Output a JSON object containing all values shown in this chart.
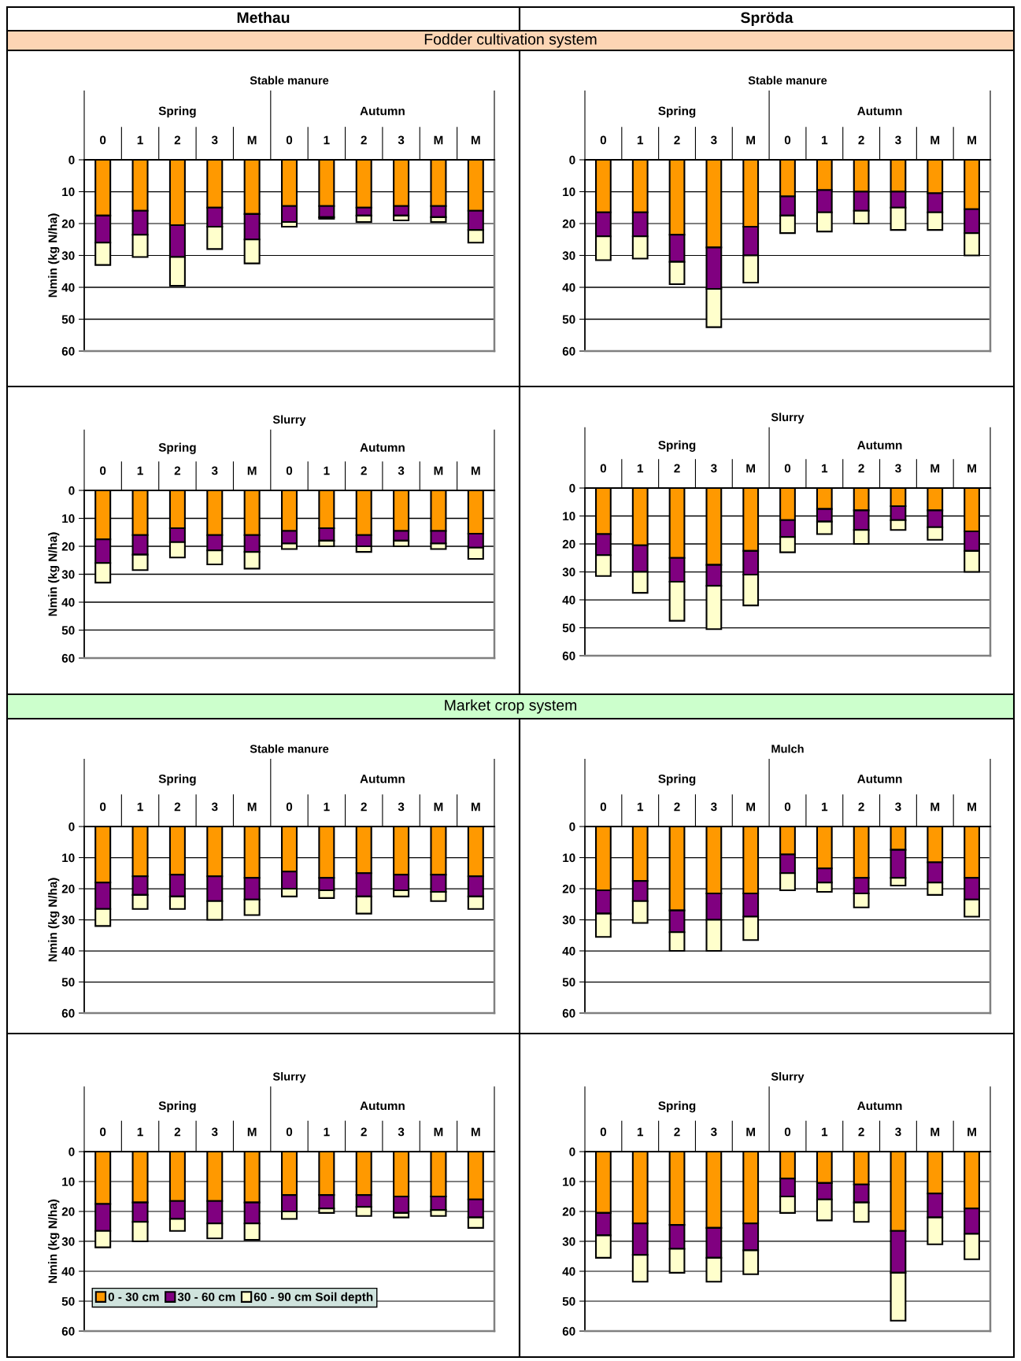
{
  "chart_data": [
    {
      "type": "other",
      "title": "Methau"
    },
    {
      "type": "other",
      "title": "Spröda"
    },
    {
      "type": "other",
      "title": "Fodder cultivation system",
      "color": "#fcd5b4"
    },
    {
      "type": "bar",
      "title": "Stable manure",
      "ylabel": "Nmin (kg N/ha)",
      "stacked": true,
      "ylim": [
        60,
        0
      ],
      "yticks": [
        0,
        10,
        20,
        30,
        40,
        50,
        60
      ],
      "grid": "y",
      "annotations": [
        "Spring",
        "Autumn"
      ],
      "categories": [
        "0",
        "1",
        "2",
        "3",
        "M",
        "0",
        "1",
        "2",
        "3",
        "M",
        "M"
      ],
      "series": [
        {
          "color": "#ff9900",
          "values": [
            17.5,
            16,
            20.5,
            15,
            17,
            14.5,
            14.5,
            15,
            14.5,
            14.5,
            16
          ]
        },
        {
          "color": "#800080",
          "values": [
            8.5,
            7.5,
            10,
            6,
            8,
            5,
            3.5,
            2.5,
            3,
            3.5,
            6
          ]
        },
        {
          "color": "#ffffcc",
          "values": [
            7,
            7,
            9,
            7,
            7.5,
            1.5,
            0.5,
            2,
            1.5,
            1.5,
            4
          ]
        }
      ]
    },
    {
      "type": "bar",
      "title": "Stable manure",
      "stacked": true,
      "ylim": [
        60,
        0
      ],
      "yticks": [
        0,
        10,
        20,
        30,
        40,
        50,
        60
      ],
      "grid": "y",
      "annotations": [
        "Spring",
        "Autumn"
      ],
      "categories": [
        "0",
        "1",
        "2",
        "3",
        "M",
        "0",
        "1",
        "2",
        "3",
        "M",
        "M"
      ],
      "series": [
        {
          "color": "#ff9900",
          "values": [
            16.5,
            16.5,
            23.5,
            27.5,
            21,
            11.5,
            9.5,
            10,
            10,
            10.5,
            15.5
          ]
        },
        {
          "color": "#800080",
          "values": [
            7.5,
            7.5,
            8.5,
            13,
            9,
            6,
            7,
            6,
            5,
            6,
            7.5
          ]
        },
        {
          "color": "#ffffcc",
          "values": [
            7.5,
            7,
            7,
            12,
            8.5,
            5.5,
            6,
            4,
            7,
            5.5,
            7
          ]
        }
      ]
    },
    {
      "type": "bar",
      "title": "Slurry",
      "ylabel": "Nmin (kg N/ha)",
      "stacked": true,
      "ylim": [
        60,
        0
      ],
      "yticks": [
        0,
        10,
        20,
        30,
        40,
        50,
        60
      ],
      "grid": "y",
      "annotations": [
        "Spring",
        "Autumn"
      ],
      "categories": [
        "0",
        "1",
        "2",
        "3",
        "M",
        "0",
        "1",
        "2",
        "3",
        "M",
        "M"
      ],
      "series": [
        {
          "color": "#ff9900",
          "values": [
            17.5,
            16,
            13.5,
            16,
            16,
            14.5,
            13.5,
            16,
            14.5,
            14.5,
            15.5
          ]
        },
        {
          "color": "#800080",
          "values": [
            8.5,
            7,
            5,
            5.5,
            6,
            4.5,
            4.5,
            4,
            3.5,
            4.5,
            5
          ]
        },
        {
          "color": "#ffffcc",
          "values": [
            7,
            5.5,
            5.5,
            5,
            6,
            2,
            2,
            2,
            2,
            2,
            4
          ]
        }
      ]
    },
    {
      "type": "bar",
      "title": "Slurry",
      "stacked": true,
      "ylim": [
        60,
        0
      ],
      "yticks": [
        0,
        10,
        20,
        30,
        40,
        50,
        60
      ],
      "grid": "y",
      "annotations": [
        "Spring",
        "Autumn"
      ],
      "categories": [
        "0",
        "1",
        "2",
        "3",
        "M",
        "0",
        "1",
        "2",
        "3",
        "M",
        "M"
      ],
      "series": [
        {
          "color": "#ff9900",
          "values": [
            16.5,
            20.5,
            25,
            27.5,
            22.5,
            11.5,
            7.5,
            8,
            6.5,
            8,
            15.5
          ]
        },
        {
          "color": "#800080",
          "values": [
            7.5,
            9.5,
            8.5,
            7.5,
            8.5,
            6,
            4.5,
            7,
            5,
            6,
            7
          ]
        },
        {
          "color": "#ffffcc",
          "values": [
            7.5,
            7.5,
            14,
            15.5,
            11,
            5.5,
            4.5,
            5,
            3.5,
            4.5,
            7.5
          ]
        }
      ]
    },
    {
      "type": "other",
      "title": "Market crop system",
      "color": "#ccffcc"
    },
    {
      "type": "bar",
      "title": "Stable manure",
      "ylabel": "Nmin (kg N/ha)",
      "stacked": true,
      "ylim": [
        60,
        0
      ],
      "yticks": [
        0,
        10,
        20,
        30,
        40,
        50,
        60
      ],
      "grid": "y",
      "annotations": [
        "Spring",
        "Autumn"
      ],
      "categories": [
        "0",
        "1",
        "2",
        "3",
        "M",
        "0",
        "1",
        "2",
        "3",
        "M",
        "M"
      ],
      "series": [
        {
          "color": "#ff9900",
          "values": [
            18,
            16,
            15.5,
            16,
            16.5,
            14.5,
            16.5,
            15,
            15.5,
            15.5,
            16
          ]
        },
        {
          "color": "#800080",
          "values": [
            8.5,
            6,
            7,
            8,
            7,
            5.5,
            4,
            7.5,
            5,
            5.5,
            6.5
          ]
        },
        {
          "color": "#ffffcc",
          "values": [
            5.5,
            4.5,
            4,
            6,
            5,
            2.5,
            2.5,
            5.5,
            2,
            3,
            4
          ]
        }
      ]
    },
    {
      "type": "bar",
      "title": "Mulch",
      "stacked": true,
      "ylim": [
        60,
        0
      ],
      "yticks": [
        0,
        10,
        20,
        30,
        40,
        50,
        60
      ],
      "grid": "y",
      "annotations": [
        "Spring",
        "Autumn"
      ],
      "categories": [
        "0",
        "1",
        "2",
        "3",
        "M",
        "0",
        "1",
        "2",
        "3",
        "M",
        "M"
      ],
      "series": [
        {
          "color": "#ff9900",
          "values": [
            20.5,
            17.5,
            27,
            21.5,
            21.5,
            9,
            13.5,
            16.5,
            7.5,
            11.5,
            16.5
          ]
        },
        {
          "color": "#800080",
          "values": [
            7.5,
            6.5,
            7,
            8.5,
            7.5,
            6,
            4.5,
            5,
            9,
            6.5,
            7
          ]
        },
        {
          "color": "#ffffcc",
          "values": [
            7.5,
            7,
            6,
            10,
            7.5,
            5.5,
            3,
            4.5,
            2.5,
            4,
            5.5
          ]
        }
      ]
    },
    {
      "type": "bar",
      "title": "Slurry",
      "ylabel": "Nmin (kg N/ha)",
      "stacked": true,
      "ylim": [
        60,
        0
      ],
      "yticks": [
        0,
        10,
        20,
        30,
        40,
        50,
        60
      ],
      "grid": "y",
      "legend": "bottom left",
      "annotations": [
        "Spring",
        "Autumn"
      ],
      "categories": [
        "0",
        "1",
        "2",
        "3",
        "M",
        "0",
        "1",
        "2",
        "3",
        "M",
        "M"
      ],
      "series": [
        {
          "name": "0 - 30 cm",
          "color": "#ff9900",
          "values": [
            17.5,
            17,
            16.5,
            16.5,
            17,
            14.5,
            14.5,
            14.5,
            15,
            15,
            16
          ]
        },
        {
          "name": "30 - 60 cm",
          "color": "#800080",
          "values": [
            9,
            6.5,
            6,
            7.5,
            7,
            5.5,
            4.5,
            4,
            5.5,
            4.5,
            6
          ]
        },
        {
          "name": "60 - 90 cm Soil depth",
          "color": "#ffffcc",
          "values": [
            5.5,
            6.5,
            4,
            5,
            5.5,
            2.5,
            1.5,
            3,
            1.5,
            2,
            3.5
          ]
        }
      ]
    },
    {
      "type": "bar",
      "title": "Slurry",
      "stacked": true,
      "ylim": [
        60,
        0
      ],
      "yticks": [
        0,
        10,
        20,
        30,
        40,
        50,
        60
      ],
      "grid": "y",
      "annotations": [
        "Spring",
        "Autumn"
      ],
      "categories": [
        "0",
        "1",
        "2",
        "3",
        "M",
        "0",
        "1",
        "2",
        "3",
        "M",
        "M"
      ],
      "series": [
        {
          "color": "#ff9900",
          "values": [
            20.5,
            24,
            24.5,
            25.5,
            24,
            9,
            10.5,
            11,
            26.5,
            14,
            19
          ]
        },
        {
          "color": "#800080",
          "values": [
            7.5,
            10.5,
            8,
            10,
            9,
            6,
            5.5,
            6,
            14,
            8,
            8.5
          ]
        },
        {
          "color": "#ffffcc",
          "values": [
            7.5,
            9,
            8,
            8,
            8,
            5.5,
            7,
            6.5,
            16,
            9,
            8.5
          ]
        }
      ]
    }
  ]
}
